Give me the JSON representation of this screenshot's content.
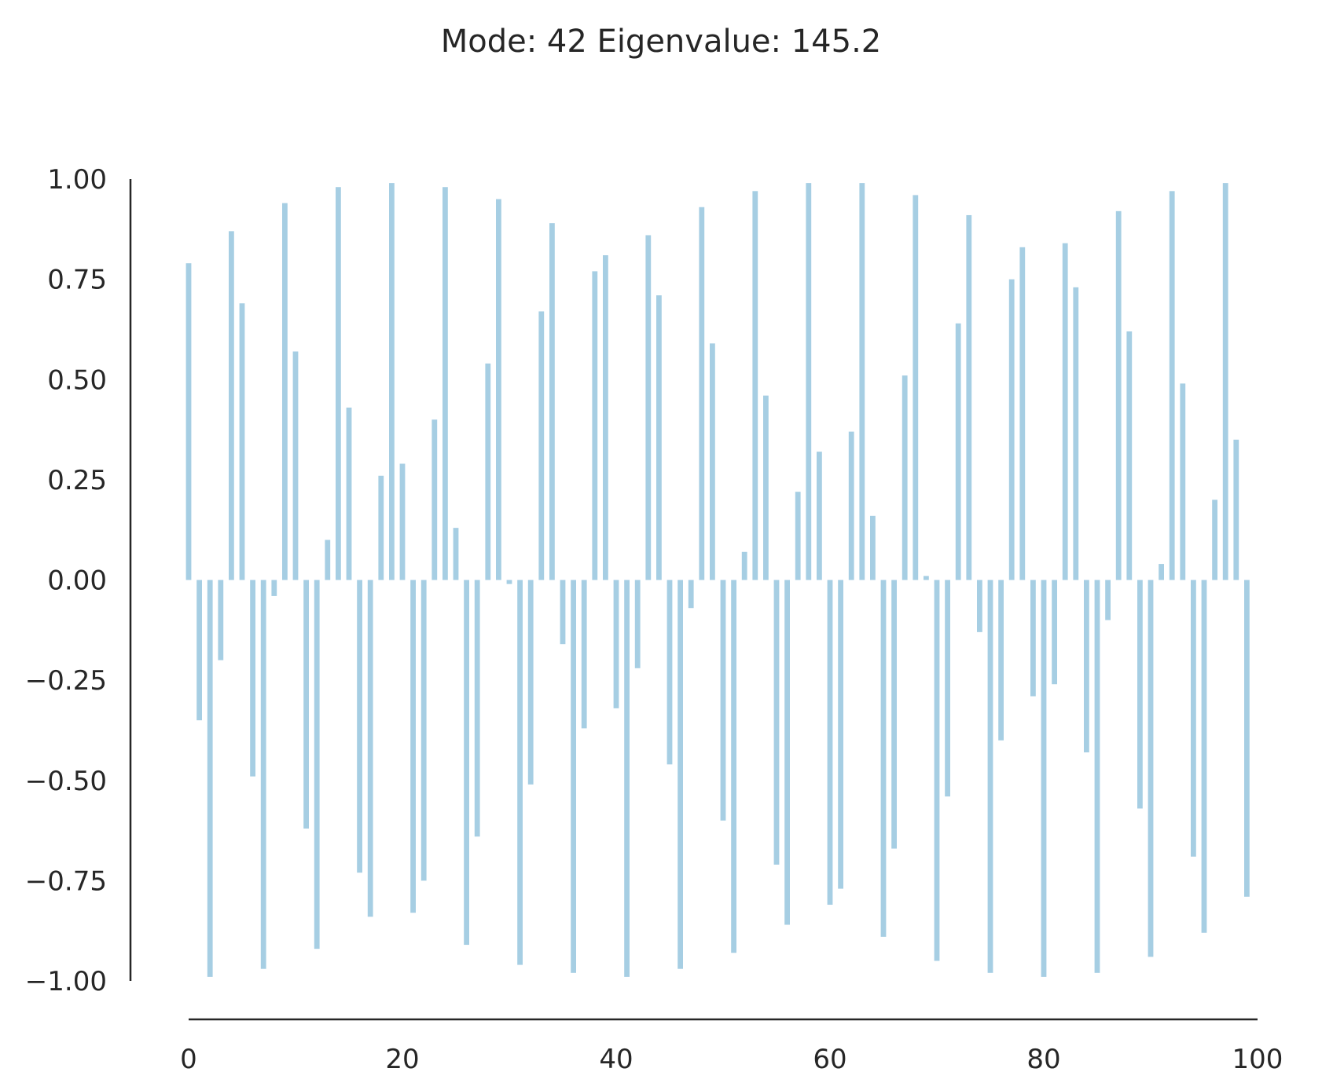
{
  "chart_data": {
    "type": "bar",
    "title": "Mode: 42  Eigenvalue: 145.2",
    "xlabel": "",
    "ylabel": "",
    "xlim": [
      0,
      100
    ],
    "ylim": [
      -1.0,
      1.0
    ],
    "x_ticks": [
      "0",
      "20",
      "40",
      "60",
      "80",
      "100"
    ],
    "y_ticks": [
      "1.00",
      "0.75",
      "0.50",
      "0.25",
      "0.00",
      "−0.25",
      "−0.50",
      "−0.75",
      "−1.00"
    ],
    "grid": false,
    "bar_color": "#a6cee3",
    "axis_color": "#262626",
    "x": [
      0,
      1,
      2,
      3,
      4,
      5,
      6,
      7,
      8,
      9,
      10,
      11,
      12,
      13,
      14,
      15,
      16,
      17,
      18,
      19,
      20,
      21,
      22,
      23,
      24,
      25,
      26,
      27,
      28,
      29,
      30,
      31,
      32,
      33,
      34,
      35,
      36,
      37,
      38,
      39,
      40,
      41,
      42,
      43,
      44,
      45,
      46,
      47,
      48,
      49,
      50,
      51,
      52,
      53,
      54,
      55,
      56,
      57,
      58,
      59,
      60,
      61,
      62,
      63,
      64,
      65,
      66,
      67,
      68,
      69,
      70,
      71,
      72,
      73,
      74,
      75,
      76,
      77,
      78,
      79,
      80,
      81,
      82,
      83,
      84,
      85,
      86,
      87,
      88,
      89,
      90,
      91,
      92,
      93,
      94,
      95,
      96,
      97,
      98,
      99
    ],
    "values": [
      0.79,
      -0.35,
      -0.99,
      -0.2,
      0.87,
      0.69,
      -0.49,
      -0.97,
      -0.04,
      0.94,
      0.57,
      -0.62,
      -0.92,
      0.1,
      0.98,
      0.43,
      -0.73,
      -0.84,
      0.26,
      0.99,
      0.29,
      -0.83,
      -0.75,
      0.4,
      0.98,
      0.13,
      -0.91,
      -0.64,
      0.54,
      0.95,
      -0.01,
      -0.96,
      -0.51,
      0.67,
      0.89,
      -0.16,
      -0.98,
      -0.37,
      0.77,
      0.81,
      -0.32,
      -0.99,
      -0.22,
      0.86,
      0.71,
      -0.46,
      -0.97,
      -0.07,
      0.93,
      0.59,
      -0.6,
      -0.93,
      0.07,
      0.97,
      0.46,
      -0.71,
      -0.86,
      0.22,
      0.99,
      0.32,
      -0.81,
      -0.77,
      0.37,
      0.99,
      0.16,
      -0.89,
      -0.67,
      0.51,
      0.96,
      0.01,
      -0.95,
      -0.54,
      0.64,
      0.91,
      -0.13,
      -0.98,
      -0.4,
      0.75,
      0.83,
      -0.29,
      -0.99,
      -0.26,
      0.84,
      0.73,
      -0.43,
      -0.98,
      -0.1,
      0.92,
      0.62,
      -0.57,
      -0.94,
      0.04,
      0.97,
      0.49,
      -0.69,
      -0.88,
      0.2,
      0.99,
      0.35,
      -0.79
    ]
  }
}
